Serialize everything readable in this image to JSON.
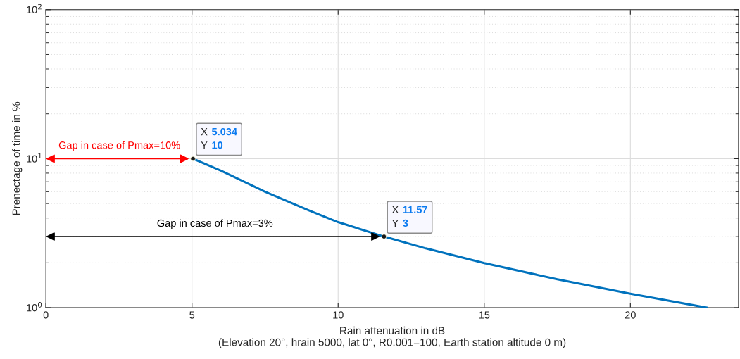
{
  "chart_data": {
    "type": "line",
    "xlabel": "Rain attenuation in dB\n(Elevation 20°, hrain 5000, lat 0°, R0.001=100, Earth station altitude 0 m)",
    "ylabel": "Prenectage of time in %",
    "x": [
      5.034,
      6,
      7.5,
      9,
      10,
      11.57,
      13,
      15,
      17.5,
      20,
      22.62
    ],
    "series": [
      {
        "color": "#0072bd",
        "values": [
          10,
          8.3,
          6.0,
          4.5,
          3.75,
          3,
          2.5,
          1.99,
          1.55,
          1.24,
          1
        ]
      },
      {
        "type": "scatter",
        "color": "#1a1a1a",
        "x": [
          5.034,
          11.57
        ],
        "values": [
          10,
          3
        ],
        "marker": "circle",
        "value_labels": [
          "X 5.034\nY 10",
          "X 11.57\nY 3"
        ]
      }
    ],
    "annotations": [
      "Gap in case of Pmax=10%",
      "Gap in case of Pmax=3%"
    ],
    "log": "y",
    "xlim": [
      0,
      23.7
    ],
    "xticks": [
      0,
      5,
      10,
      15,
      20
    ],
    "ylim": [
      1,
      100
    ],
    "yticks": [
      {
        "value": 1,
        "label": "10$^{0}$"
      },
      {
        "value": 10,
        "label": "10$^{1}$"
      },
      {
        "value": 100,
        "label": "10$^{2}$"
      }
    ],
    "grid": true
  }
}
